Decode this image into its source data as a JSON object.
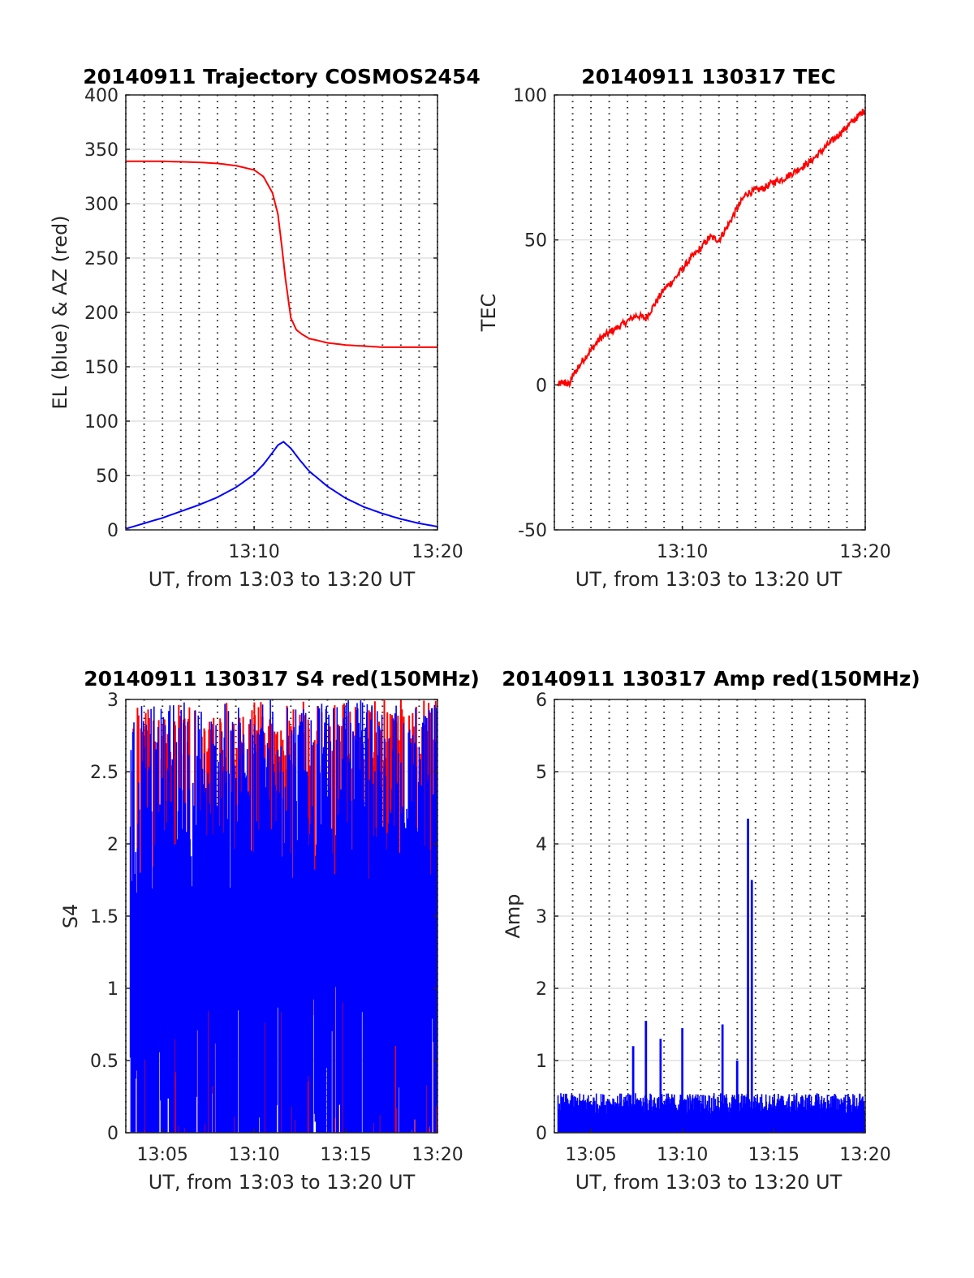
{
  "chart_data": [
    {
      "type": "line",
      "title": "20140911 Trajectory COSMOS2454",
      "xlabel": "UT, from 13:03 to 13:20 UT",
      "ylabel": "EL (blue) & AZ (red)",
      "xlim": [
        "13:03",
        "13:20"
      ],
      "ylim": [
        0,
        400
      ],
      "xticks": [
        "13:10",
        "13:20"
      ],
      "yticks": [
        "0",
        "50",
        "100",
        "150",
        "200",
        "250",
        "300",
        "350",
        "400"
      ],
      "grid": true,
      "series": [
        {
          "color": "#ff0000",
          "x": [
            "13:03",
            "13:05",
            "13:07",
            "13:08",
            "13:09",
            "13:10",
            "13:10.5",
            "13:11",
            "13:11.3",
            "13:11.5",
            "13:11.7",
            "13:12",
            "13:12.3",
            "13:12.6",
            "13:13",
            "13:14",
            "13:15",
            "13:16",
            "13:17",
            "13:18",
            "13:19",
            "13:20"
          ],
          "values": [
            339,
            339,
            338,
            337,
            335,
            331,
            325,
            310,
            290,
            262,
            232,
            195,
            184,
            180,
            176,
            172,
            170,
            169,
            168,
            168,
            168,
            168
          ]
        },
        {
          "color": "#0000ff",
          "x": [
            "13:03",
            "13:04",
            "13:05",
            "13:06",
            "13:07",
            "13:08",
            "13:09",
            "13:10",
            "13:10.5",
            "13:11",
            "13:11.3",
            "13:11.6",
            "13:12",
            "13:12.5",
            "13:13",
            "13:14",
            "13:15",
            "13:16",
            "13:17",
            "13:18",
            "13:19",
            "13:20"
          ],
          "values": [
            1,
            6,
            11,
            17,
            23,
            30,
            39,
            51,
            60,
            71,
            78,
            81,
            75,
            64,
            54,
            40,
            29,
            21,
            15,
            10,
            6,
            3
          ]
        }
      ]
    },
    {
      "type": "line",
      "title": "20140911 130317 TEC",
      "xlabel": "UT, from 13:03 to 13:20 UT",
      "ylabel": "TEC",
      "xlim": [
        "13:03",
        "13:20"
      ],
      "ylim": [
        -50,
        100
      ],
      "xticks": [
        "13:10",
        "13:20"
      ],
      "yticks": [
        "-50",
        "0",
        "50",
        "100"
      ],
      "grid": true,
      "series": [
        {
          "color": "#ff0000",
          "x": [
            "13:03.2",
            "13:03.5",
            "13:03.8",
            "13:04",
            "13:04.5",
            "13:05",
            "13:05.5",
            "13:06",
            "13:06.5",
            "13:07",
            "13:07.5",
            "13:08",
            "13:08.5",
            "13:09",
            "13:09.5",
            "13:10",
            "13:10.5",
            "13:11",
            "13:11.5",
            "13:12",
            "13:12.5",
            "13:13",
            "13:13.5",
            "13:14",
            "13:14.5",
            "13:15",
            "13:15.5",
            "13:16",
            "13:16.5",
            "13:17",
            "13:17.5",
            "13:18",
            "13:18.5",
            "13:19",
            "13:19.5",
            "13:20"
          ],
          "values": [
            0,
            1,
            0,
            3,
            8,
            12,
            16,
            18,
            20,
            22,
            24,
            23,
            28,
            33,
            36,
            40,
            44,
            47,
            51,
            50,
            55,
            61,
            66,
            67,
            68,
            70,
            71,
            73,
            75,
            77,
            80,
            83,
            86,
            89,
            92,
            95
          ]
        }
      ]
    },
    {
      "type": "line",
      "title": "20140911 130317 S4 red(150MHz)",
      "xlabel": "UT, from 13:03 to 13:20 UT",
      "ylabel": "S4",
      "xlim": [
        "13:03",
        "13:20"
      ],
      "ylim": [
        0,
        3
      ],
      "xticks": [
        "13:05",
        "13:10",
        "13:15",
        "13:20"
      ],
      "yticks": [
        "0",
        "0.5",
        "1",
        "1.5",
        "2",
        "2.5",
        "3"
      ],
      "grid": true,
      "series": [
        {
          "color": "#ff0000",
          "note_values": "dense noise, mostly saturated"
        },
        {
          "color": "#0000ff",
          "note_values": "dense noise between 0 and 3"
        }
      ]
    },
    {
      "type": "line",
      "title": "20140911 130317 Amp red(150MHz)",
      "xlabel": "UT, from 13:03 to 13:20 UT",
      "ylabel": "Amp",
      "xlim": [
        "13:03",
        "13:20"
      ],
      "ylim": [
        0,
        6
      ],
      "xticks": [
        "13:05",
        "13:10",
        "13:15",
        "13:20"
      ],
      "yticks": [
        "0",
        "1",
        "2",
        "3",
        "4",
        "5",
        "6"
      ],
      "grid": true,
      "series": [
        {
          "color": "#ff0000",
          "note_values": "near zero"
        },
        {
          "color": "#0000ff",
          "peaks_x": [
            "13:07.3",
            "13:08",
            "13:08.8",
            "13:10",
            "13:12.2",
            "13:13",
            "13:13.6",
            "13:13.8"
          ],
          "peaks_values": [
            1.2,
            1.55,
            1.3,
            1.45,
            1.5,
            1.0,
            4.35,
            3.5
          ]
        }
      ]
    }
  ]
}
